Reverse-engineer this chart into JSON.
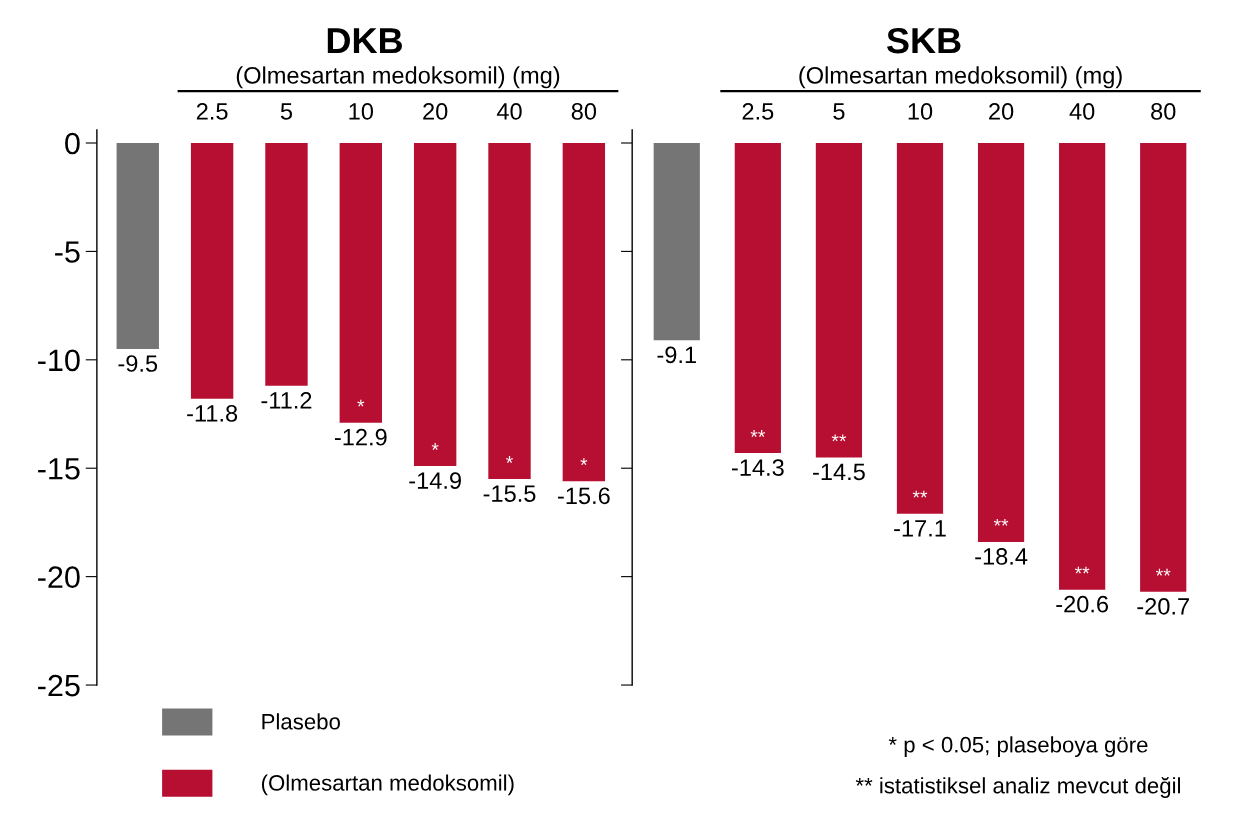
{
  "chart_data": [
    {
      "type": "bar",
      "title": "DKB",
      "subtitle": "(Olmesartan medoksomil) (mg)",
      "categories": [
        null,
        "2.5",
        "5",
        "10",
        "20",
        "40",
        "80"
      ],
      "ylim": [
        -25,
        0.6
      ],
      "yticks": [
        0,
        -5,
        -10,
        -15,
        -20,
        -25
      ],
      "data_labels": true,
      "legend": "bottom left",
      "series": [
        {
          "name": "Plasebo",
          "color": "#757575",
          "values": [
            -9.5,
            null,
            null,
            null,
            null,
            null,
            null
          ]
        },
        {
          "name": "(Olmesartan medoksomil)",
          "color": "#b70f32",
          "values": [
            null,
            -11.8,
            -11.2,
            -12.9,
            -14.9,
            -15.5,
            -15.6
          ]
        }
      ],
      "annotations": [
        {
          "text": "*",
          "x": "10",
          "y": -12.9
        },
        {
          "text": "*",
          "x": "20",
          "y": -14.9
        },
        {
          "text": "*",
          "x": "40",
          "y": -15.5
        },
        {
          "text": "*",
          "x": "80",
          "y": -15.6
        }
      ]
    },
    {
      "type": "bar",
      "title": "SKB",
      "subtitle": "(Olmesartan medoksomil) (mg)",
      "categories": [
        null,
        "2.5",
        "5",
        "10",
        "20",
        "40",
        "80"
      ],
      "ylim": [
        -25,
        0.6
      ],
      "tick_labels": "x",
      "data_labels": true,
      "series": [
        {
          "color": "#757575",
          "values": [
            -9.1,
            null,
            null,
            null,
            null,
            null,
            null
          ]
        },
        {
          "color": "#b70f32",
          "values": [
            null,
            -14.3,
            -14.5,
            -17.1,
            -18.4,
            -20.6,
            -20.7
          ]
        }
      ],
      "annotations": [
        {
          "text": "**",
          "x": "2.5",
          "y": -14.3
        },
        {
          "text": "**",
          "x": "5",
          "y": -14.5
        },
        {
          "text": "**",
          "x": "10",
          "y": -17.1
        },
        {
          "text": "**",
          "x": "20",
          "y": -18.4
        },
        {
          "text": "**",
          "x": "40",
          "y": -20.6
        },
        {
          "text": "**",
          "x": "80",
          "y": -20.7
        },
        "* p < 0.05; plaseboya göre",
        "** istatistiksel analiz mevcut değil"
      ]
    }
  ]
}
